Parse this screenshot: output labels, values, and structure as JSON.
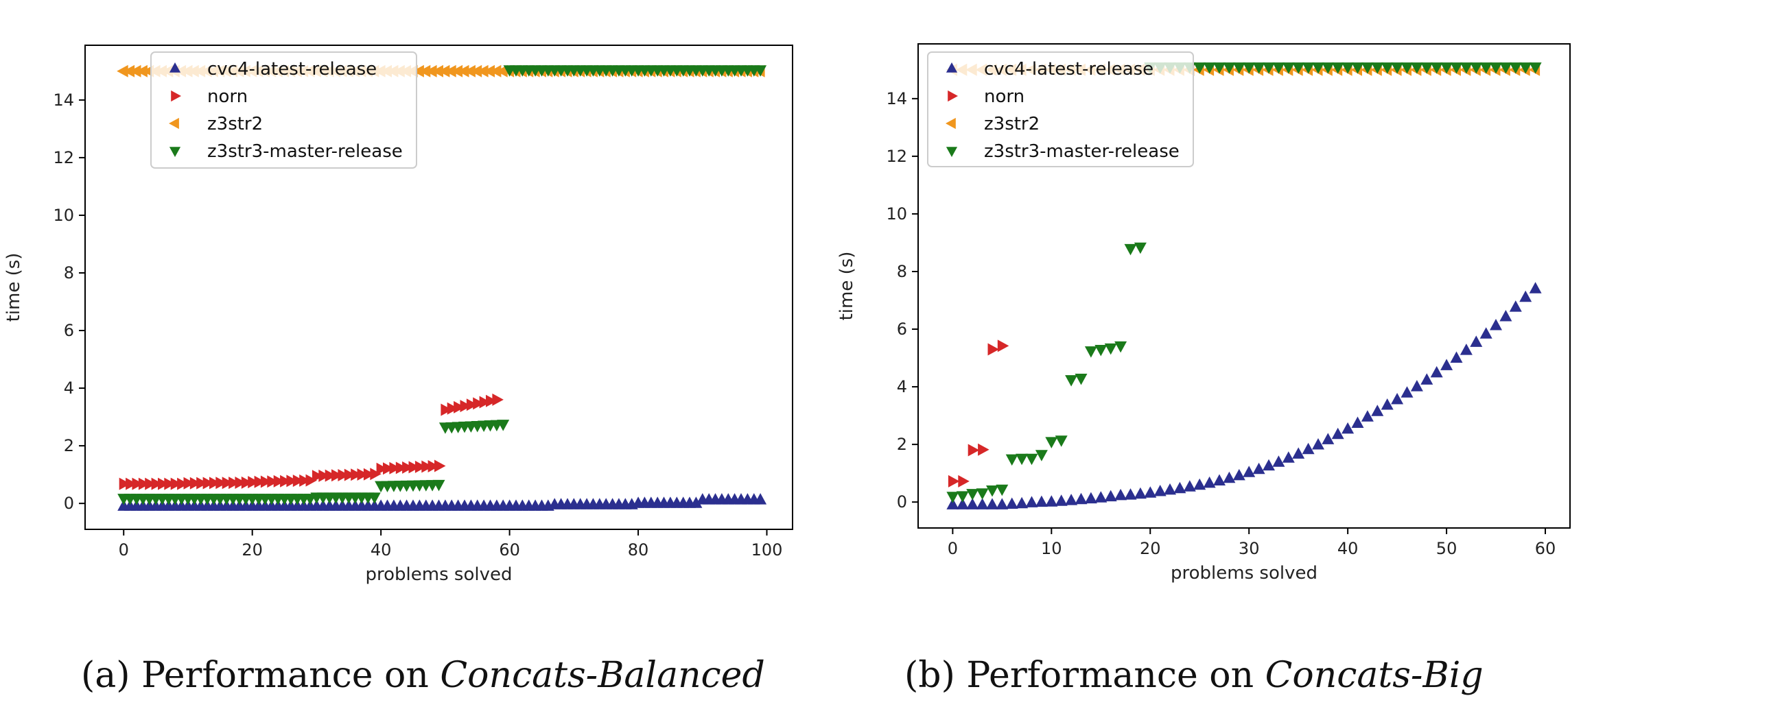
{
  "captions": [
    {
      "prefix": "(a) Performance on",
      "emph": "Concats-Balanced"
    },
    {
      "prefix": "(b) Performance on",
      "emph": "Concats-Big"
    }
  ],
  "chart_data": [
    {
      "type": "scatter",
      "xlabel": "problems solved",
      "ylabel": "time (s)",
      "xlim": [
        -6,
        104
      ],
      "ylim": [
        -0.9,
        15.9
      ],
      "xticks": [
        0,
        20,
        40,
        60,
        80,
        100
      ],
      "yticks": [
        0,
        2,
        4,
        6,
        8,
        10,
        12,
        14
      ],
      "grid": false,
      "legend_position": "top-left",
      "series": [
        {
          "name": "cvc4-latest-release",
          "marker": "triangle-up",
          "color": "#2b2f8f",
          "segments": [
            [
              0,
              66,
              -0.1,
              -0.1
            ],
            [
              67,
              79,
              -0.05,
              -0.05
            ],
            [
              80,
              89,
              0.0,
              0.0
            ],
            [
              90,
              99,
              0.12,
              0.12
            ]
          ]
        },
        {
          "name": "norn",
          "marker": "triangle-right",
          "color": "#d62728",
          "segments": [
            [
              0,
              9,
              0.68,
              0.68
            ],
            [
              10,
              19,
              0.7,
              0.72
            ],
            [
              20,
              29,
              0.74,
              0.8
            ],
            [
              30,
              39,
              0.95,
              1.02
            ],
            [
              40,
              49,
              1.2,
              1.3
            ],
            [
              50,
              58,
              3.25,
              3.6
            ]
          ]
        },
        {
          "name": "z3str2",
          "marker": "triangle-left",
          "color": "#f0961e",
          "segments": [
            [
              0,
              99,
              15.0,
              15.0
            ]
          ]
        },
        {
          "name": "z3str3-master-release",
          "marker": "triangle-down",
          "color": "#1a7a1a",
          "segments": [
            [
              0,
              29,
              0.18,
              0.18
            ],
            [
              30,
              39,
              0.22,
              0.22
            ],
            [
              40,
              49,
              0.62,
              0.66
            ],
            [
              50,
              59,
              2.65,
              2.75
            ],
            [
              60,
              99,
              15.05,
              15.05
            ]
          ]
        }
      ]
    },
    {
      "type": "scatter",
      "xlabel": "problems solved",
      "ylabel": "time (s)",
      "xlim": [
        -3.5,
        62.5
      ],
      "ylim": [
        -0.9,
        15.9
      ],
      "xticks": [
        0,
        10,
        20,
        30,
        40,
        50,
        60
      ],
      "yticks": [
        0,
        2,
        4,
        6,
        8,
        10,
        12,
        14
      ],
      "grid": false,
      "legend_position": "top-left",
      "series": [
        {
          "name": "cvc4-latest-release",
          "marker": "triangle-up",
          "color": "#2b2f8f",
          "values": [
            -0.1,
            -0.1,
            -0.1,
            -0.1,
            -0.1,
            -0.1,
            -0.08,
            -0.06,
            -0.03,
            -0.01,
            0.0,
            0.02,
            0.05,
            0.08,
            0.11,
            0.14,
            0.18,
            0.22,
            0.24,
            0.27,
            0.31,
            0.36,
            0.41,
            0.46,
            0.52,
            0.58,
            0.65,
            0.73,
            0.82,
            0.91,
            1.02,
            1.13,
            1.25,
            1.38,
            1.52,
            1.66,
            1.82,
            1.98,
            2.16,
            2.34,
            2.53,
            2.73,
            2.95,
            3.14,
            3.36,
            3.55,
            3.78,
            4.0,
            4.23,
            4.48,
            4.73,
            4.99,
            5.26,
            5.54,
            5.83,
            6.12,
            6.43,
            6.76,
            7.1,
            7.4
          ]
        },
        {
          "name": "norn",
          "marker": "triangle-right",
          "color": "#d62728",
          "points": [
            [
              0,
              0.72
            ],
            [
              1,
              0.72
            ],
            [
              2,
              1.8
            ],
            [
              3,
              1.82
            ],
            [
              4,
              5.3
            ],
            [
              5,
              5.42
            ]
          ]
        },
        {
          "name": "z3str2",
          "marker": "triangle-left",
          "color": "#f0961e",
          "segments": [
            [
              0,
              59,
              15.0,
              15.0
            ]
          ]
        },
        {
          "name": "z3str3-master-release",
          "marker": "triangle-down",
          "color": "#1a7a1a",
          "points": [
            [
              0,
              0.2
            ],
            [
              1,
              0.22
            ],
            [
              2,
              0.3
            ],
            [
              3,
              0.32
            ],
            [
              4,
              0.42
            ],
            [
              5,
              0.45
            ],
            [
              6,
              1.5
            ],
            [
              7,
              1.52
            ],
            [
              8,
              1.52
            ],
            [
              9,
              1.65
            ],
            [
              10,
              2.1
            ],
            [
              11,
              2.15
            ],
            [
              12,
              4.25
            ],
            [
              13,
              4.3
            ],
            [
              14,
              5.25
            ],
            [
              15,
              5.3
            ],
            [
              16,
              5.35
            ],
            [
              17,
              5.42
            ],
            [
              18,
              8.8
            ],
            [
              19,
              8.85
            ]
          ],
          "segments": [
            [
              20,
              59,
              15.1,
              15.1
            ]
          ]
        }
      ]
    }
  ]
}
